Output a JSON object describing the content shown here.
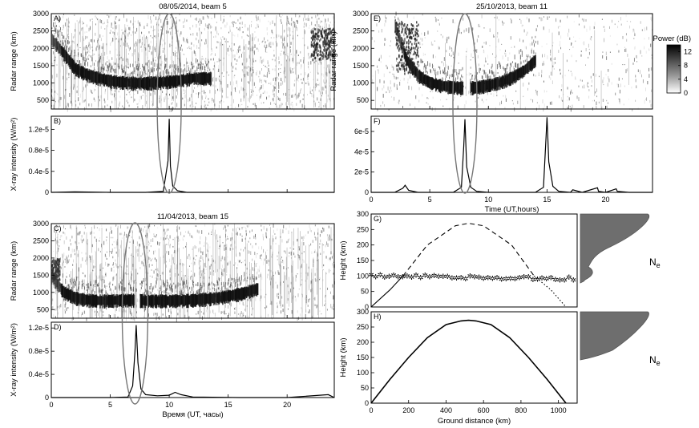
{
  "chart_data": [
    {
      "id": "A",
      "type": "heatmap",
      "panel_label": "A)",
      "title": "08/05/2014, beam 5",
      "ylabel": "Radar range (km)",
      "xlim": [
        0,
        24
      ],
      "ylim": [
        250,
        3000
      ],
      "yticks": [
        500,
        1000,
        1500,
        2000,
        2500,
        3000
      ],
      "echo_band_range_km": [
        [
          0,
          2300
        ],
        [
          1,
          1900
        ],
        [
          2,
          1450
        ],
        [
          3,
          1280
        ],
        [
          4,
          1180
        ],
        [
          5,
          1100
        ],
        [
          6,
          1060
        ],
        [
          7,
          1040
        ],
        [
          8,
          1040
        ],
        [
          9,
          1060
        ],
        [
          10,
          1080
        ],
        [
          11,
          1120
        ],
        [
          12,
          1180
        ],
        [
          24,
          1180
        ]
      ],
      "gap_hours": [
        13.5,
        24
      ]
    },
    {
      "id": "B",
      "type": "line",
      "panel_label": "B)",
      "ylabel": "X-ray intensity (W/m²)",
      "xlim": [
        0,
        24
      ],
      "ylim": [
        0,
        1.45e-05
      ],
      "ytick_labels": [
        "0",
        "0.4e-5",
        "0.8e-5",
        "1.2e-5"
      ],
      "yticks": [
        0,
        4e-06,
        8e-06,
        1.2e-05
      ],
      "x": [
        0,
        2,
        5,
        8,
        9.5,
        9.9,
        10.0,
        10.1,
        10.3,
        10.7,
        11.5,
        15,
        20,
        24
      ],
      "y": [
        0,
        1e-07,
        0,
        0,
        2e-07,
        6e-06,
        1.4e-05,
        5e-06,
        1.2e-06,
        3e-07,
        0,
        0,
        0,
        0
      ]
    },
    {
      "id": "C",
      "type": "heatmap",
      "panel_label": "C)",
      "title": "11/04/2013, beam 15",
      "ylabel": "Radar range (km)",
      "xlim": [
        0,
        24
      ],
      "ylim": [
        250,
        3000
      ],
      "yticks": [
        500,
        1000,
        1500,
        2000,
        2500,
        3000
      ],
      "echo_band_range_km": [
        [
          0,
          1500
        ],
        [
          1,
          1050
        ],
        [
          2,
          880
        ],
        [
          3,
          820
        ],
        [
          4,
          800
        ],
        [
          5,
          800
        ],
        [
          6,
          820
        ],
        [
          7,
          820
        ],
        [
          8,
          800
        ],
        [
          10,
          800
        ],
        [
          12,
          820
        ],
        [
          14,
          880
        ],
        [
          16,
          1000
        ],
        [
          17.5,
          1150
        ]
      ],
      "gap_hours": [
        7,
        7.5
      ]
    },
    {
      "id": "D",
      "type": "line",
      "panel_label": "D)",
      "ylabel": "X-ray intensity (W/m²)",
      "xlabel": "Время (UT, часы)",
      "xlim": [
        0,
        24
      ],
      "ylim": [
        0,
        1.3e-05
      ],
      "xticks": [
        0,
        5,
        10,
        15,
        20
      ],
      "ytick_labels": [
        "0",
        "0.4e-5",
        "0.8e-5",
        "1.2e-5"
      ],
      "yticks": [
        0,
        4e-06,
        8e-06,
        1.2e-05
      ],
      "x": [
        0,
        1,
        5,
        6.5,
        6.9,
        7.1,
        7.2,
        7.35,
        7.6,
        8,
        9,
        10,
        10.5,
        11,
        12,
        16,
        20,
        23.5,
        24
      ],
      "y": [
        0,
        0,
        0,
        1e-07,
        2e-06,
        8e-06,
        1.25e-05,
        6e-06,
        1.5e-06,
        5e-07,
        3e-07,
        4e-07,
        9e-07,
        5e-07,
        1e-07,
        0,
        0,
        5e-07,
        0
      ]
    },
    {
      "id": "E",
      "type": "heatmap",
      "panel_label": "E)",
      "title": "25/10/2013, beam 11",
      "ylabel": "Radar range (km)",
      "xlim": [
        0,
        24
      ],
      "ylim": [
        250,
        3000
      ],
      "yticks": [
        500,
        1000,
        1500,
        2000,
        2500,
        3000
      ],
      "echo_band_range_km": [
        [
          2,
          2700
        ],
        [
          3,
          1700
        ],
        [
          4,
          1250
        ],
        [
          5,
          1050
        ],
        [
          6,
          960
        ],
        [
          7,
          920
        ],
        [
          8,
          900
        ],
        [
          9,
          920
        ],
        [
          10,
          980
        ],
        [
          11,
          1060
        ],
        [
          12,
          1200
        ],
        [
          13,
          1400
        ],
        [
          14,
          1700
        ]
      ],
      "gap_hours": [
        7.8,
        8.4
      ],
      "colorbar": {
        "label": "Power (dB)",
        "ticks": [
          0,
          4,
          8,
          12
        ],
        "range": [
          0,
          14
        ]
      }
    },
    {
      "id": "F",
      "type": "line",
      "panel_label": "F)",
      "xlabel": "Time (UT,hours)",
      "xlim": [
        0,
        24
      ],
      "ylim": [
        0,
        7.5e-05
      ],
      "xticks": [
        0,
        5,
        10,
        15,
        20
      ],
      "ytick_labels": [
        "0",
        "2e-5",
        "4e-5",
        "6e-5"
      ],
      "yticks": [
        0,
        2e-05,
        4e-05,
        6e-05
      ],
      "x": [
        0,
        2,
        2.7,
        2.9,
        3.2,
        4,
        7,
        7.7,
        7.9,
        8.0,
        8.15,
        8.5,
        9,
        10,
        14,
        14.7,
        14.9,
        15.0,
        15.15,
        15.5,
        16,
        17,
        17.2,
        18,
        19.3,
        19.4,
        20,
        20.9,
        21,
        22,
        24
      ],
      "y": [
        0,
        0,
        4e-06,
        7e-06,
        2e-06,
        0,
        0,
        5e-06,
        4.5e-05,
        7.2e-05,
        2.5e-05,
        5e-06,
        1e-06,
        0,
        0,
        5e-06,
        5e-05,
        7.4e-05,
        3e-05,
        6e-06,
        1e-06,
        0,
        2.5e-06,
        0,
        4.5e-06,
        1e-06,
        0,
        3.5e-06,
        1e-06,
        0,
        0
      ]
    },
    {
      "id": "G",
      "type": "line",
      "panel_label": "G)",
      "ylabel": "Height (km)",
      "xlim": [
        0,
        1100
      ],
      "ylim": [
        0,
        300
      ],
      "yticks": [
        0,
        50,
        100,
        150,
        200,
        250,
        300
      ],
      "series": [
        {
          "style": "solid",
          "x": [
            0,
            100,
            170
          ],
          "y": [
            0,
            55,
            100
          ]
        },
        {
          "style": "dashed",
          "x": [
            170,
            300,
            450,
            520,
            600,
            750,
            870
          ],
          "y": [
            100,
            200,
            262,
            270,
            262,
            200,
            100
          ]
        },
        {
          "style": "dotted",
          "x": [
            870,
            960,
            1040
          ],
          "y": [
            100,
            55,
            0
          ]
        },
        {
          "style": "markers",
          "marker": "✲",
          "x_start": 0,
          "x_end": 1080,
          "y_start": 100,
          "y_end": 90
        }
      ],
      "side_label": "Ne",
      "side_label_sub": "e"
    },
    {
      "id": "H",
      "type": "line",
      "panel_label": "H)",
      "ylabel": "Height (km)",
      "xlabel": "Ground distance (km)",
      "xlim": [
        0,
        1100
      ],
      "ylim": [
        0,
        300
      ],
      "xticks": [
        0,
        200,
        400,
        600,
        800,
        1000
      ],
      "yticks": [
        0,
        50,
        100,
        150,
        200,
        250,
        300
      ],
      "x": [
        0,
        100,
        200,
        300,
        400,
        480,
        520,
        560,
        640,
        740,
        840,
        940,
        1040
      ],
      "y": [
        0,
        78,
        150,
        215,
        258,
        270,
        272,
        270,
        258,
        215,
        150,
        78,
        0
      ],
      "side_label": "Ne",
      "side_label_sub": "e"
    }
  ]
}
